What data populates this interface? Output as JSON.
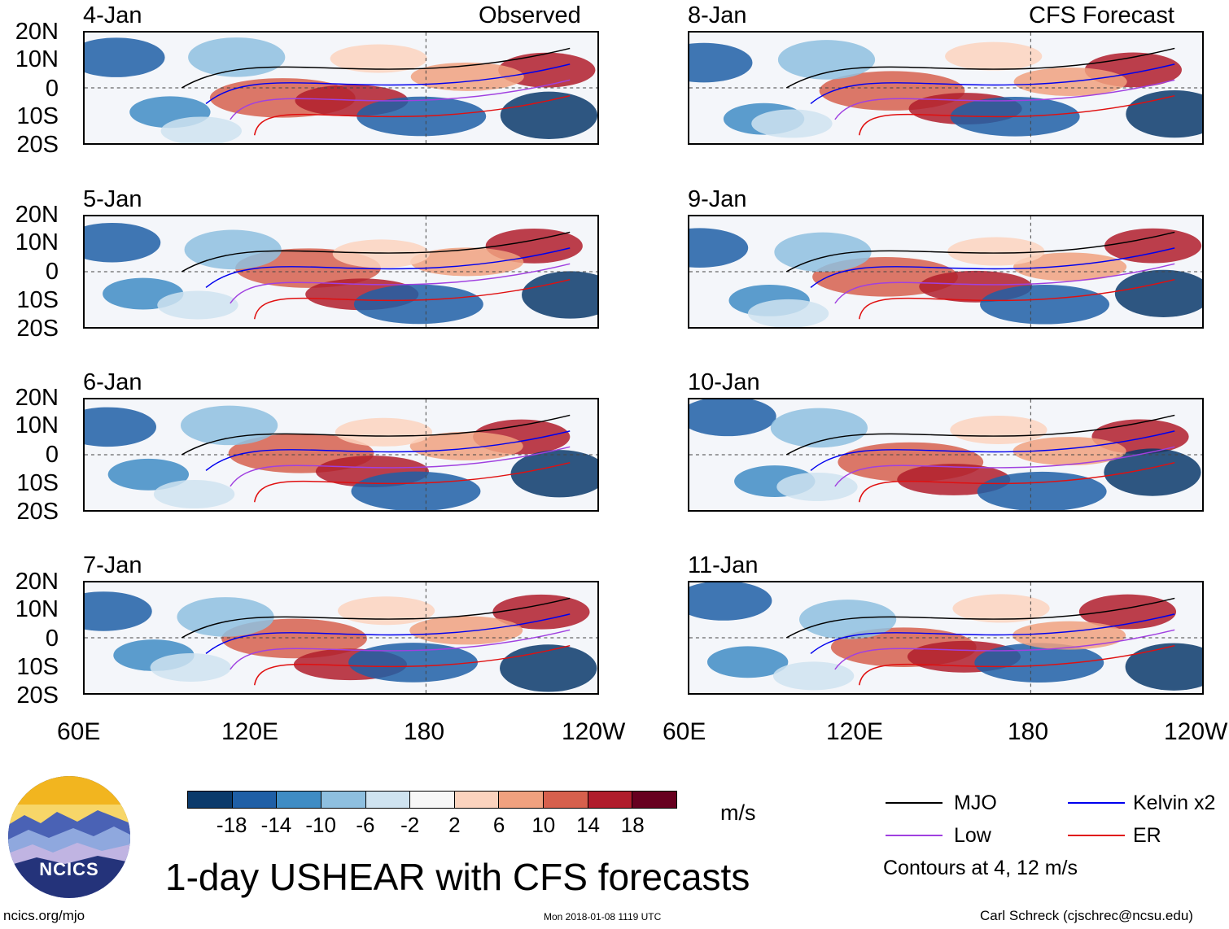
{
  "columns": {
    "left_title": "Observed",
    "right_title": "CFS Forecast"
  },
  "panels_left": [
    {
      "date": "4-Jan"
    },
    {
      "date": "5-Jan"
    },
    {
      "date": "6-Jan"
    },
    {
      "date": "7-Jan"
    }
  ],
  "panels_right": [
    {
      "date": "8-Jan"
    },
    {
      "date": "9-Jan"
    },
    {
      "date": "10-Jan"
    },
    {
      "date": "11-Jan"
    }
  ],
  "lat_labels": [
    "20N",
    "10N",
    "0",
    "10S",
    "20S"
  ],
  "lon_labels": [
    "60E",
    "120E",
    "180",
    "120W"
  ],
  "colorbar": {
    "ticks": [
      "-18",
      "-14",
      "-10",
      "-6",
      "-2",
      "2",
      "6",
      "10",
      "14",
      "18"
    ],
    "colors": [
      "#0b3a6b",
      "#1f5fa6",
      "#3f8cc4",
      "#8ebfdf",
      "#cfe3f0",
      "#f7f7f7",
      "#fbd3be",
      "#f0a17f",
      "#d6604d",
      "#b01d2c",
      "#67001f"
    ],
    "unit": "m/s"
  },
  "legend": {
    "items": [
      {
        "label": "MJO",
        "color": "#000000"
      },
      {
        "label": "Kelvin x2",
        "color": "#0000ee"
      },
      {
        "label": "Low",
        "color": "#a040e0"
      },
      {
        "label": "ER",
        "color": "#e01010"
      }
    ],
    "note": "Contours at 4, 12 m/s"
  },
  "logo": {
    "text": "NCICS"
  },
  "title": "1-day USHEAR with CFS forecasts",
  "footer": {
    "site": "ncics.org/mjo",
    "timestamp": "Mon 2018-01-08 1119 UTC",
    "credit": "Carl Schreck (cjschrec@ncsu.edu)"
  }
}
